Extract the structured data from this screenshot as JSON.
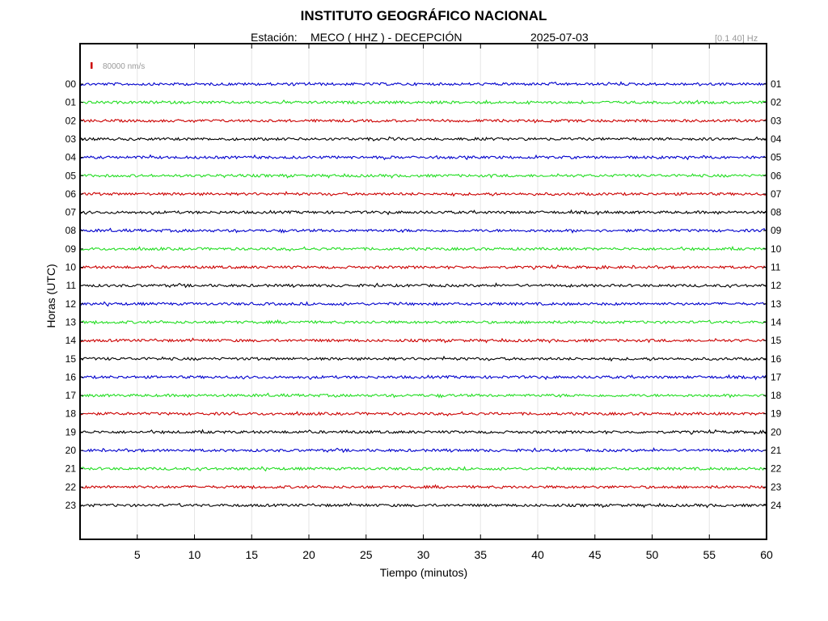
{
  "header": {
    "title": "INSTITUTO GEOGRÁFICO NACIONAL",
    "station_label": "Estación:",
    "station": "MECO ( HHZ ) - DECEPCIÓN",
    "date": "2025-07-03",
    "filter": "[0.1 40] Hz"
  },
  "chart_data": {
    "type": "line",
    "title": "INSTITUTO GEOGRÁFICO NACIONAL",
    "xlabel": "Tiempo (minutos)",
    "ylabel": "Horas (UTC)",
    "xlim": [
      0,
      60
    ],
    "x_ticks": [
      5,
      10,
      15,
      20,
      25,
      30,
      35,
      40,
      45,
      50,
      55,
      60
    ],
    "left_tick_labels": [
      "00",
      "01",
      "02",
      "03",
      "04",
      "05",
      "06",
      "07",
      "08",
      "09",
      "10",
      "11",
      "12",
      "13",
      "14",
      "15",
      "16",
      "17",
      "18",
      "19",
      "20",
      "21",
      "22",
      "23"
    ],
    "right_tick_labels": [
      "01",
      "02",
      "03",
      "04",
      "05",
      "06",
      "07",
      "08",
      "09",
      "10",
      "11",
      "12",
      "13",
      "14",
      "15",
      "16",
      "17",
      "18",
      "19",
      "20",
      "21",
      "22",
      "23",
      "24"
    ],
    "trace_colors": [
      "#0000cc",
      "#22dd22",
      "#cc0000",
      "#000000"
    ],
    "scale_label": "80000 nm/s",
    "scale_color": "#cc0000",
    "grid": true
  }
}
